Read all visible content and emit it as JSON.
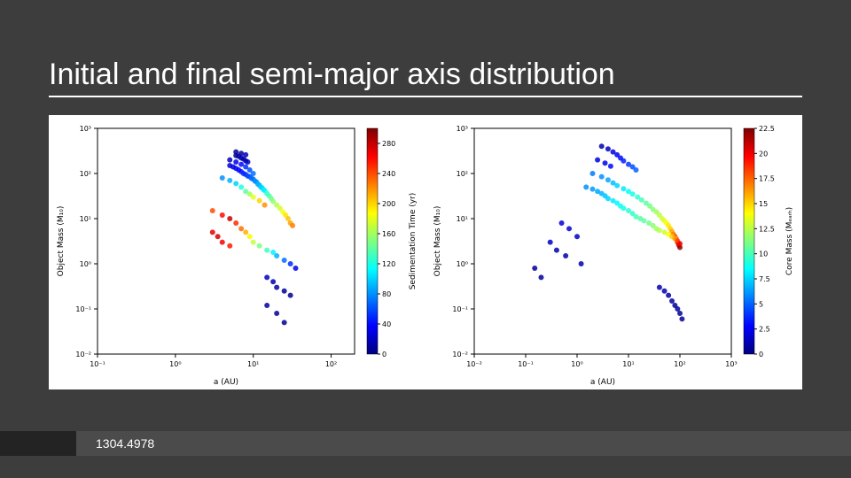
{
  "slide": {
    "title": "Initial and final semi-major axis distribution",
    "reference": "1304.4978",
    "background_color": "#3d3d3d",
    "title_fontsize": 34,
    "title_color": "#ffffff"
  },
  "jet_colormap": [
    "#00007f",
    "#0000ff",
    "#007fff",
    "#00ffff",
    "#7fff7f",
    "#ffff00",
    "#ff7f00",
    "#ff0000",
    "#7f0000"
  ],
  "left_chart": {
    "type": "scatter",
    "xlabel": "a (AU)",
    "ylabel": "Object Mass (M₁₀)",
    "cbar_label": "Sedimentation Time (yr)",
    "xscale": "log",
    "yscale": "log",
    "xlim": [
      0.1,
      200
    ],
    "ylim": [
      0.01,
      1000
    ],
    "xticks": [
      0.1,
      1,
      10,
      100
    ],
    "xtick_labels": [
      "10⁻¹",
      "10⁰",
      "10¹",
      "10²"
    ],
    "yticks": [
      0.01,
      0.1,
      1,
      10,
      100,
      1000
    ],
    "ytick_labels": [
      "10⁻²",
      "10⁻¹",
      "10⁰",
      "10¹",
      "10²",
      "10³"
    ],
    "cbar_range": [
      0,
      300
    ],
    "cbar_ticks": [
      0,
      40,
      80,
      120,
      160,
      200,
      240,
      280
    ],
    "marker_size": 3,
    "frame_color": "#000000",
    "background_color": "#ffffff",
    "points": [
      {
        "x": 6,
        "y": 300,
        "c": 5
      },
      {
        "x": 7,
        "y": 280,
        "c": 10
      },
      {
        "x": 8,
        "y": 260,
        "c": 15
      },
      {
        "x": 5,
        "y": 200,
        "c": 20
      },
      {
        "x": 6,
        "y": 180,
        "c": 30
      },
      {
        "x": 7,
        "y": 160,
        "c": 40
      },
      {
        "x": 8,
        "y": 140,
        "c": 50
      },
      {
        "x": 9,
        "y": 120,
        "c": 60
      },
      {
        "x": 10,
        "y": 100,
        "c": 70
      },
      {
        "x": 4,
        "y": 80,
        "c": 80
      },
      {
        "x": 5,
        "y": 70,
        "c": 90
      },
      {
        "x": 6,
        "y": 60,
        "c": 100
      },
      {
        "x": 7,
        "y": 50,
        "c": 120
      },
      {
        "x": 8,
        "y": 40,
        "c": 140
      },
      {
        "x": 9,
        "y": 35,
        "c": 160
      },
      {
        "x": 10,
        "y": 30,
        "c": 180
      },
      {
        "x": 12,
        "y": 25,
        "c": 200
      },
      {
        "x": 14,
        "y": 20,
        "c": 220
      },
      {
        "x": 3,
        "y": 15,
        "c": 240
      },
      {
        "x": 4,
        "y": 12,
        "c": 260
      },
      {
        "x": 5,
        "y": 10,
        "c": 280
      },
      {
        "x": 6,
        "y": 8,
        "c": 250
      },
      {
        "x": 7,
        "y": 6,
        "c": 230
      },
      {
        "x": 8,
        "y": 5,
        "c": 210
      },
      {
        "x": 9,
        "y": 4,
        "c": 190
      },
      {
        "x": 10,
        "y": 3,
        "c": 170
      },
      {
        "x": 12,
        "y": 2.5,
        "c": 150
      },
      {
        "x": 15,
        "y": 2,
        "c": 130
      },
      {
        "x": 18,
        "y": 1.8,
        "c": 110
      },
      {
        "x": 20,
        "y": 1.5,
        "c": 90
      },
      {
        "x": 25,
        "y": 1.2,
        "c": 70
      },
      {
        "x": 30,
        "y": 1,
        "c": 50
      },
      {
        "x": 35,
        "y": 0.8,
        "c": 30
      },
      {
        "x": 6,
        "y": 250,
        "c": 8
      },
      {
        "x": 7,
        "y": 220,
        "c": 12
      },
      {
        "x": 8,
        "y": 190,
        "c": 18
      },
      {
        "x": 5,
        "y": 150,
        "c": 25
      },
      {
        "x": 6,
        "y": 130,
        "c": 35
      },
      {
        "x": 7,
        "y": 110,
        "c": 45
      },
      {
        "x": 8,
        "y": 95,
        "c": 55
      },
      {
        "x": 9,
        "y": 85,
        "c": 65
      },
      {
        "x": 10,
        "y": 75,
        "c": 75
      },
      {
        "x": 11,
        "y": 65,
        "c": 85
      },
      {
        "x": 12,
        "y": 55,
        "c": 95
      },
      {
        "x": 13,
        "y": 48,
        "c": 105
      },
      {
        "x": 14,
        "y": 42,
        "c": 115
      },
      {
        "x": 15,
        "y": 36,
        "c": 125
      },
      {
        "x": 16,
        "y": 32,
        "c": 135
      },
      {
        "x": 17,
        "y": 28,
        "c": 145
      },
      {
        "x": 18,
        "y": 24,
        "c": 155
      },
      {
        "x": 20,
        "y": 20,
        "c": 165
      },
      {
        "x": 22,
        "y": 17,
        "c": 175
      },
      {
        "x": 24,
        "y": 14,
        "c": 185
      },
      {
        "x": 26,
        "y": 12,
        "c": 195
      },
      {
        "x": 28,
        "y": 10,
        "c": 205
      },
      {
        "x": 30,
        "y": 8,
        "c": 215
      },
      {
        "x": 32,
        "y": 7,
        "c": 225
      },
      {
        "x": 3,
        "y": 5,
        "c": 270
      },
      {
        "x": 3.5,
        "y": 4,
        "c": 275
      },
      {
        "x": 4,
        "y": 3,
        "c": 265
      },
      {
        "x": 5,
        "y": 2.5,
        "c": 255
      },
      {
        "x": 15,
        "y": 0.5,
        "c": 20
      },
      {
        "x": 18,
        "y": 0.4,
        "c": 15
      },
      {
        "x": 20,
        "y": 0.3,
        "c": 10
      },
      {
        "x": 25,
        "y": 0.25,
        "c": 8
      },
      {
        "x": 30,
        "y": 0.2,
        "c": 5
      },
      {
        "x": 15,
        "y": 0.12,
        "c": 10
      },
      {
        "x": 20,
        "y": 0.08,
        "c": 8
      },
      {
        "x": 25,
        "y": 0.05,
        "c": 5
      },
      {
        "x": 6.5,
        "y": 240,
        "c": 9
      },
      {
        "x": 7.5,
        "y": 210,
        "c": 14
      },
      {
        "x": 8.5,
        "y": 180,
        "c": 20
      },
      {
        "x": 5.5,
        "y": 140,
        "c": 28
      },
      {
        "x": 6.5,
        "y": 120,
        "c": 38
      },
      {
        "x": 7.5,
        "y": 100,
        "c": 48
      },
      {
        "x": 8.5,
        "y": 88,
        "c": 58
      },
      {
        "x": 9.5,
        "y": 78,
        "c": 68
      },
      {
        "x": 10.5,
        "y": 68,
        "c": 78
      },
      {
        "x": 11.5,
        "y": 58,
        "c": 88
      },
      {
        "x": 12.5,
        "y": 50,
        "c": 98
      },
      {
        "x": 13.5,
        "y": 44,
        "c": 108
      }
    ]
  },
  "right_chart": {
    "type": "scatter",
    "xlabel": "a (AU)",
    "ylabel": "Object Mass (M₁₀)",
    "cbar_label": "Core Mass (Mₑₐᵣₕ)",
    "xscale": "log",
    "yscale": "log",
    "xlim": [
      0.01,
      1000
    ],
    "ylim": [
      0.01,
      1000
    ],
    "xticks": [
      0.01,
      0.1,
      1,
      10,
      100,
      1000
    ],
    "xtick_labels": [
      "10⁻²",
      "10⁻¹",
      "10⁰",
      "10¹",
      "10²",
      "10³"
    ],
    "yticks": [
      0.01,
      0.1,
      1,
      10,
      100,
      1000
    ],
    "ytick_labels": [
      "10⁻²",
      "10⁻¹",
      "10⁰",
      "10¹",
      "10²",
      "10³"
    ],
    "cbar_range": [
      0,
      22.5
    ],
    "cbar_ticks": [
      0,
      2.5,
      5.0,
      7.5,
      10.0,
      12.5,
      15.0,
      17.5,
      20.0,
      22.5
    ],
    "marker_size": 3,
    "frame_color": "#000000",
    "background_color": "#ffffff",
    "points": [
      {
        "x": 3,
        "y": 400,
        "c": 1
      },
      {
        "x": 4,
        "y": 350,
        "c": 1.5
      },
      {
        "x": 5,
        "y": 300,
        "c": 2
      },
      {
        "x": 6,
        "y": 260,
        "c": 2.5
      },
      {
        "x": 7,
        "y": 220,
        "c": 3
      },
      {
        "x": 8,
        "y": 190,
        "c": 3.5
      },
      {
        "x": 10,
        "y": 160,
        "c": 4
      },
      {
        "x": 12,
        "y": 140,
        "c": 4.5
      },
      {
        "x": 14,
        "y": 120,
        "c": 5
      },
      {
        "x": 2,
        "y": 100,
        "c": 5.5
      },
      {
        "x": 3,
        "y": 85,
        "c": 6
      },
      {
        "x": 4,
        "y": 72,
        "c": 6.5
      },
      {
        "x": 5,
        "y": 62,
        "c": 7
      },
      {
        "x": 6,
        "y": 54,
        "c": 7.5
      },
      {
        "x": 8,
        "y": 46,
        "c": 8
      },
      {
        "x": 10,
        "y": 40,
        "c": 8.5
      },
      {
        "x": 12,
        "y": 35,
        "c": 9
      },
      {
        "x": 15,
        "y": 30,
        "c": 9.5
      },
      {
        "x": 18,
        "y": 26,
        "c": 10
      },
      {
        "x": 22,
        "y": 22,
        "c": 10.5
      },
      {
        "x": 26,
        "y": 19,
        "c": 11
      },
      {
        "x": 30,
        "y": 16,
        "c": 11.5
      },
      {
        "x": 35,
        "y": 14,
        "c": 12
      },
      {
        "x": 40,
        "y": 12,
        "c": 12.5
      },
      {
        "x": 45,
        "y": 10,
        "c": 13
      },
      {
        "x": 50,
        "y": 9,
        "c": 13.5
      },
      {
        "x": 55,
        "y": 8,
        "c": 14
      },
      {
        "x": 60,
        "y": 7,
        "c": 14.5
      },
      {
        "x": 65,
        "y": 6,
        "c": 15
      },
      {
        "x": 70,
        "y": 5.2,
        "c": 16
      },
      {
        "x": 75,
        "y": 4.5,
        "c": 17
      },
      {
        "x": 80,
        "y": 4,
        "c": 18
      },
      {
        "x": 85,
        "y": 3.5,
        "c": 19
      },
      {
        "x": 90,
        "y": 3,
        "c": 20
      },
      {
        "x": 95,
        "y": 2.6,
        "c": 21
      },
      {
        "x": 100,
        "y": 2.3,
        "c": 22
      },
      {
        "x": 0.5,
        "y": 8,
        "c": 2
      },
      {
        "x": 0.7,
        "y": 6,
        "c": 2
      },
      {
        "x": 1,
        "y": 4,
        "c": 1.5
      },
      {
        "x": 0.3,
        "y": 3,
        "c": 1.5
      },
      {
        "x": 0.4,
        "y": 2,
        "c": 1
      },
      {
        "x": 0.6,
        "y": 1.5,
        "c": 1
      },
      {
        "x": 1.2,
        "y": 1,
        "c": 1
      },
      {
        "x": 0.15,
        "y": 0.8,
        "c": 0.5
      },
      {
        "x": 0.2,
        "y": 0.5,
        "c": 0.5
      },
      {
        "x": 1.5,
        "y": 50,
        "c": 6
      },
      {
        "x": 2,
        "y": 45,
        "c": 6.2
      },
      {
        "x": 2.5,
        "y": 40,
        "c": 6.5
      },
      {
        "x": 3,
        "y": 36,
        "c": 6.8
      },
      {
        "x": 3.5,
        "y": 32,
        "c": 7.2
      },
      {
        "x": 4,
        "y": 28,
        "c": 7.5
      },
      {
        "x": 5,
        "y": 25,
        "c": 8
      },
      {
        "x": 6,
        "y": 22,
        "c": 8.3
      },
      {
        "x": 7,
        "y": 19,
        "c": 8.6
      },
      {
        "x": 8,
        "y": 17,
        "c": 9
      },
      {
        "x": 10,
        "y": 15,
        "c": 9.3
      },
      {
        "x": 12,
        "y": 13,
        "c": 9.6
      },
      {
        "x": 14,
        "y": 11,
        "c": 10
      },
      {
        "x": 17,
        "y": 10,
        "c": 10.3
      },
      {
        "x": 20,
        "y": 9,
        "c": 10.6
      },
      {
        "x": 25,
        "y": 8,
        "c": 11
      },
      {
        "x": 30,
        "y": 7,
        "c": 11.5
      },
      {
        "x": 35,
        "y": 6,
        "c": 12
      },
      {
        "x": 40,
        "y": 5.5,
        "c": 12.5
      },
      {
        "x": 50,
        "y": 5,
        "c": 13
      },
      {
        "x": 60,
        "y": 4.5,
        "c": 14
      },
      {
        "x": 70,
        "y": 4,
        "c": 15
      },
      {
        "x": 80,
        "y": 3.6,
        "c": 16
      },
      {
        "x": 90,
        "y": 3.2,
        "c": 18
      },
      {
        "x": 100,
        "y": 2.8,
        "c": 20
      },
      {
        "x": 40,
        "y": 0.3,
        "c": 1
      },
      {
        "x": 50,
        "y": 0.25,
        "c": 1
      },
      {
        "x": 60,
        "y": 0.2,
        "c": 0.8
      },
      {
        "x": 70,
        "y": 0.15,
        "c": 0.8
      },
      {
        "x": 80,
        "y": 0.12,
        "c": 0.5
      },
      {
        "x": 90,
        "y": 0.1,
        "c": 0.5
      },
      {
        "x": 100,
        "y": 0.08,
        "c": 0.5
      },
      {
        "x": 110,
        "y": 0.06,
        "c": 0.5
      },
      {
        "x": 2.5,
        "y": 200,
        "c": 2
      },
      {
        "x": 3.5,
        "y": 170,
        "c": 2.5
      },
      {
        "x": 4.5,
        "y": 145,
        "c": 3
      }
    ]
  }
}
